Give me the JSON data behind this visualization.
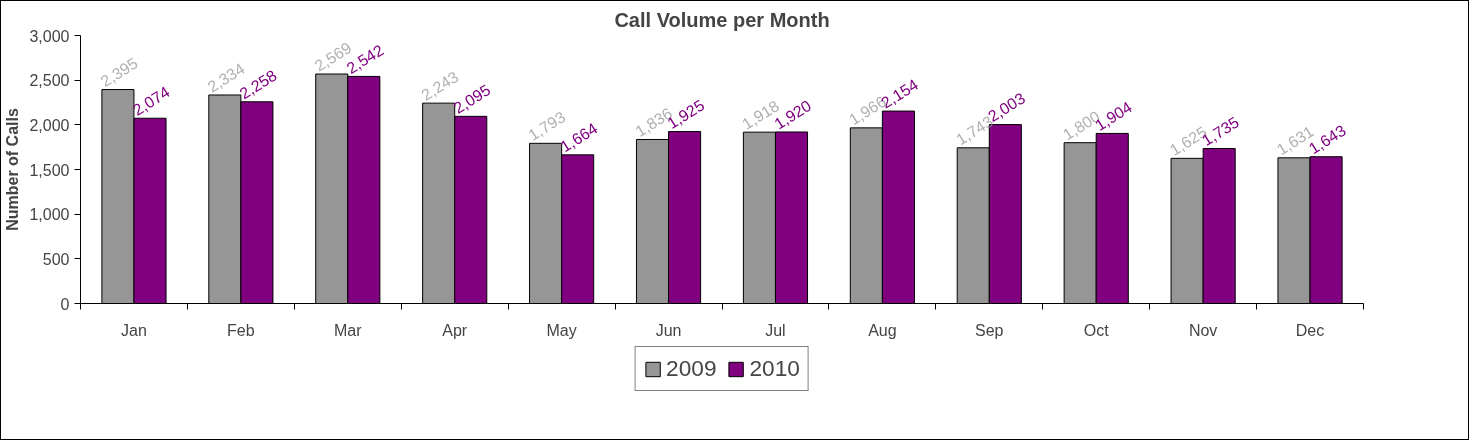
{
  "chart_data": {
    "type": "bar",
    "title": "Call Volume per Month",
    "ylabel": "Number of Calls",
    "categories": [
      "Jan",
      "Feb",
      "Mar",
      "Apr",
      "May",
      "Jun",
      "Jul",
      "Aug",
      "Sep",
      "Oct",
      "Nov",
      "Dec"
    ],
    "series": [
      {
        "name": "2009",
        "color": "#969696",
        "values": [
          2395,
          2334,
          2569,
          2243,
          1793,
          1836,
          1918,
          1966,
          1743,
          1800,
          1625,
          1631
        ],
        "value_labels": [
          "2,395",
          "2,334",
          "2,569",
          "2,243",
          "1,793",
          "1,836",
          "1,918",
          "1,966",
          "1,743",
          "1,800",
          "1,625",
          "1,631"
        ]
      },
      {
        "name": "2010",
        "color": "#800080",
        "values": [
          2074,
          2258,
          2542,
          2095,
          1664,
          1925,
          1920,
          2154,
          2003,
          1904,
          1735,
          1643
        ],
        "value_labels": [
          "2,074",
          "2,258",
          "2,542",
          "2,095",
          "1,664",
          "1,925",
          "1,920",
          "2,154",
          "2,003",
          "1,904",
          "1,735",
          "1,643"
        ]
      }
    ],
    "ylim": [
      0,
      3000
    ],
    "yticks": [
      0,
      {
        "value": 500,
        "label": "500"
      },
      {
        "value": 1000,
        "label": "1,000"
      },
      {
        "value": 1500,
        "label": "1,500"
      },
      {
        "value": 2000,
        "label": "2,000"
      },
      {
        "value": 2500,
        "label": "2,500"
      },
      {
        "value": 3000,
        "label": "3,000"
      }
    ],
    "grid": false,
    "legend": "bottom"
  }
}
